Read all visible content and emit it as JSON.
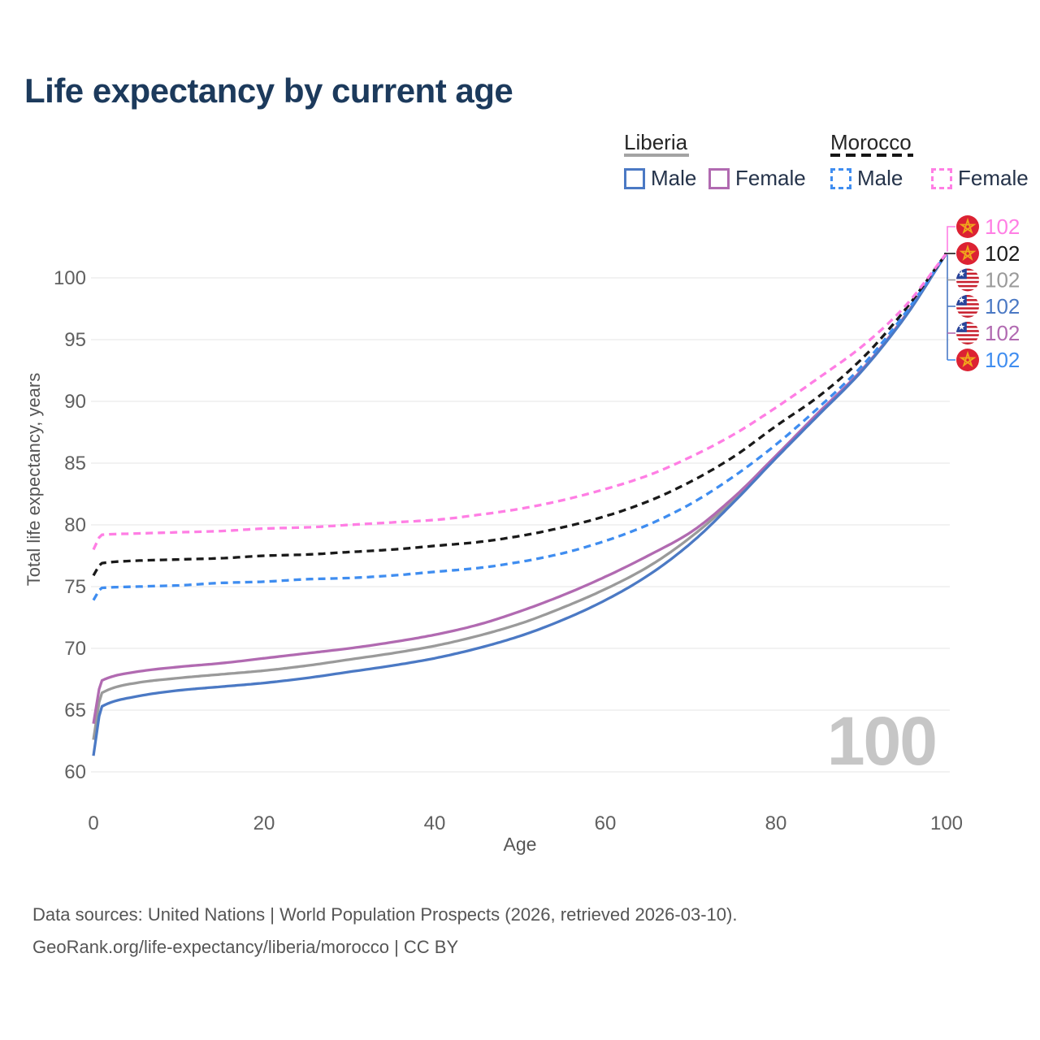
{
  "title": "Life expectancy by current age",
  "legend": {
    "groups": [
      {
        "label": "Liberia",
        "line_style": "solid",
        "underline_color": "#a3a3a3",
        "items": [
          {
            "label": "Male",
            "series": "liberia_male"
          },
          {
            "label": "Female",
            "series": "liberia_female"
          }
        ]
      },
      {
        "label": "Morocco",
        "line_style": "dashed",
        "underline_color": "#151515",
        "items": [
          {
            "label": "Male",
            "series": "morocco_male"
          },
          {
            "label": "Female",
            "series": "morocco_female"
          }
        ]
      }
    ]
  },
  "axes": {
    "x": {
      "label": "Age",
      "ticks": [
        0,
        20,
        40,
        60,
        80,
        100
      ],
      "range": [
        0,
        100
      ]
    },
    "y": {
      "label": "Total life expectancy, years",
      "ticks": [
        60,
        65,
        70,
        75,
        80,
        85,
        90,
        95,
        100
      ],
      "range": [
        58.5,
        103
      ]
    }
  },
  "watermark": "100",
  "end_labels": [
    {
      "value": "102",
      "series": "morocco_female",
      "flag": "morocco-flag-icon"
    },
    {
      "value": "102",
      "series": "morocco_all",
      "flag": "morocco-flag-icon"
    },
    {
      "value": "102",
      "series": "liberia_all",
      "flag": "liberia-flag-icon"
    },
    {
      "value": "102",
      "series": "liberia_male",
      "flag": "liberia-flag-icon"
    },
    {
      "value": "102",
      "series": "liberia_female",
      "flag": "liberia-flag-icon"
    },
    {
      "value": "102",
      "series": "morocco_male",
      "flag": "morocco-flag-icon"
    }
  ],
  "footer": {
    "line1": "Data sources: United Nations | World Population Prospects (2026, retrieved 2026-03-10).",
    "line2": "GeoRank.org/life-expectancy/liberia/morocco | CC BY"
  },
  "colors": {
    "title": "#1c3a5c",
    "tick_label": "#606060",
    "grid": "#ebebeb",
    "watermark": "#c6c6c6",
    "footer": "#555555",
    "legend_label": "#25334a"
  },
  "chart_data": {
    "type": "line",
    "title": "Life expectancy by current age",
    "xlabel": "Age",
    "ylabel": "Total life expectancy, years",
    "xlim": [
      0,
      100
    ],
    "ylim": [
      58.5,
      103
    ],
    "grid": "horizontal",
    "x": [
      0,
      1,
      5,
      10,
      15,
      20,
      25,
      30,
      35,
      40,
      45,
      50,
      55,
      60,
      65,
      70,
      75,
      80,
      85,
      90,
      95,
      100
    ],
    "series": [
      {
        "key": "liberia_all",
        "name": "Liberia (both sexes)",
        "country": "Liberia",
        "style": "solid",
        "color": "#9a9a9a",
        "values": [
          62.6,
          66.4,
          67.2,
          67.6,
          67.9,
          68.2,
          68.6,
          69.1,
          69.6,
          70.2,
          71.0,
          72.0,
          73.3,
          74.8,
          76.6,
          79.0,
          82.0,
          85.5,
          89.0,
          92.5,
          96.7,
          102
        ]
      },
      {
        "key": "liberia_female",
        "name": "Liberia Female",
        "country": "Liberia",
        "style": "solid",
        "color": "#b16ab1",
        "values": [
          63.9,
          67.4,
          68.1,
          68.5,
          68.8,
          69.2,
          69.6,
          70.0,
          70.5,
          71.1,
          71.9,
          73.0,
          74.3,
          75.8,
          77.5,
          79.4,
          82.2,
          85.6,
          89.1,
          92.5,
          96.8,
          102
        ]
      },
      {
        "key": "liberia_male",
        "name": "Liberia Male",
        "country": "Liberia",
        "style": "solid",
        "color": "#4b79c4",
        "values": [
          61.3,
          65.3,
          66.1,
          66.6,
          66.9,
          67.2,
          67.6,
          68.1,
          68.6,
          69.2,
          70.0,
          71.0,
          72.3,
          73.9,
          75.9,
          78.5,
          81.8,
          85.4,
          88.9,
          92.4,
          96.7,
          102
        ]
      },
      {
        "key": "morocco_male",
        "name": "Morocco Male",
        "country": "Morocco",
        "style": "dashed",
        "color": "#3f8df0",
        "values": [
          73.9,
          74.9,
          75.0,
          75.1,
          75.3,
          75.4,
          75.6,
          75.7,
          75.9,
          76.2,
          76.5,
          77.0,
          77.7,
          78.7,
          80.0,
          81.7,
          83.9,
          86.5,
          89.5,
          92.8,
          97.0,
          102
        ]
      },
      {
        "key": "morocco_all",
        "name": "Morocco (both sexes)",
        "country": "Morocco",
        "style": "dashed",
        "color": "#1a1a1a",
        "values": [
          75.9,
          76.9,
          77.1,
          77.2,
          77.3,
          77.5,
          77.6,
          77.8,
          78.0,
          78.3,
          78.6,
          79.1,
          79.8,
          80.7,
          81.9,
          83.5,
          85.5,
          88.0,
          90.4,
          93.4,
          97.3,
          102
        ]
      },
      {
        "key": "morocco_female",
        "name": "Morocco Female",
        "country": "Morocco",
        "style": "dashed",
        "color": "#ff7ee4",
        "values": [
          78.0,
          79.2,
          79.3,
          79.4,
          79.5,
          79.7,
          79.8,
          80.0,
          80.2,
          80.4,
          80.8,
          81.3,
          82.0,
          82.9,
          84.0,
          85.5,
          87.3,
          89.5,
          91.9,
          94.4,
          97.6,
          102
        ]
      }
    ]
  }
}
